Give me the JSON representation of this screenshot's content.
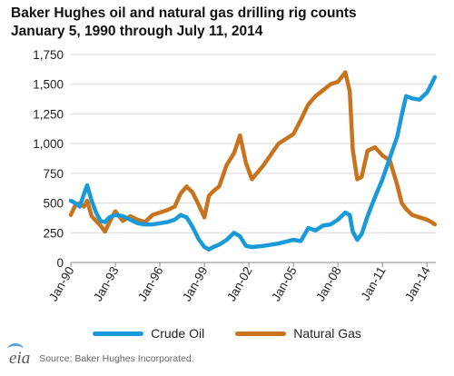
{
  "header": {
    "title_line1": "Baker Hughes oil and natural gas drilling rig counts",
    "title_line2": "January 5, 1990 through July 11, 2014"
  },
  "footer": {
    "logo": "eia",
    "source": "Source: Baker Hughes Incorporated."
  },
  "chart_data": {
    "type": "line",
    "title": "Baker Hughes oil and natural gas drilling rig counts",
    "subtitle": "January 5, 1990 through July 11, 2014",
    "xlabel": "",
    "ylabel": "",
    "ylim": [
      0,
      1750
    ],
    "xlim": [
      1990.0,
      2014.6
    ],
    "yticks": [
      0,
      250,
      500,
      750,
      1000,
      1250,
      1500,
      1750
    ],
    "ytick_labels": [
      "0",
      "250",
      "500",
      "750",
      "1,000",
      "1,250",
      "1,500",
      "1,750"
    ],
    "xticks": [
      1990,
      1993,
      1996,
      1999,
      2002,
      2005,
      2008,
      2011,
      2014
    ],
    "xtick_labels": [
      "Jan-90",
      "Jan-93",
      "Jan-96",
      "Jan-99",
      "Jan-02",
      "Jan-05",
      "Jan-08",
      "Jan-11",
      "Jan-14"
    ],
    "grid": "horizontal",
    "legend_position": "bottom",
    "series": [
      {
        "name": "Crude Oil",
        "color": "#1a9ad8",
        "x": [
          1990.0,
          1990.3,
          1990.6,
          1990.9,
          1991.1,
          1991.4,
          1991.7,
          1992.0,
          1992.3,
          1992.6,
          1993.0,
          1993.5,
          1994.0,
          1994.5,
          1995.0,
          1995.5,
          1996.0,
          1996.5,
          1997.0,
          1997.4,
          1997.8,
          1998.2,
          1998.6,
          1999.0,
          1999.3,
          1999.6,
          2000.0,
          2000.5,
          2001.0,
          2001.4,
          2001.8,
          2002.2,
          2003.0,
          2004.0,
          2005.0,
          2005.5,
          2006.0,
          2006.5,
          2007.0,
          2007.5,
          2008.0,
          2008.5,
          2008.8,
          2009.0,
          2009.3,
          2009.6,
          2010.0,
          2010.5,
          2011.0,
          2011.5,
          2012.0,
          2012.3,
          2012.6,
          2013.0,
          2013.5,
          2014.0,
          2014.3,
          2014.53
        ],
        "values": [
          520,
          500,
          470,
          580,
          650,
          520,
          420,
          350,
          340,
          380,
          400,
          390,
          360,
          330,
          320,
          320,
          330,
          340,
          360,
          400,
          380,
          300,
          200,
          130,
          110,
          130,
          150,
          190,
          250,
          220,
          140,
          130,
          140,
          160,
          190,
          180,
          290,
          270,
          310,
          320,
          360,
          420,
          400,
          260,
          190,
          240,
          390,
          550,
          700,
          880,
          1060,
          1240,
          1400,
          1380,
          1370,
          1430,
          1500,
          1560
        ]
      },
      {
        "name": "Natural Gas",
        "color": "#c8741e",
        "x": [
          1990.0,
          1990.3,
          1990.6,
          1990.9,
          1991.1,
          1991.4,
          1991.7,
          1992.0,
          1992.3,
          1992.6,
          1993.0,
          1993.5,
          1994.0,
          1994.5,
          1995.0,
          1995.5,
          1996.0,
          1996.5,
          1997.0,
          1997.4,
          1997.8,
          1998.2,
          1998.6,
          1999.0,
          1999.3,
          1999.6,
          2000.0,
          2000.5,
          2001.0,
          2001.4,
          2001.8,
          2002.2,
          2003.0,
          2004.0,
          2005.0,
          2005.5,
          2006.0,
          2006.5,
          2007.0,
          2007.5,
          2008.0,
          2008.5,
          2008.8,
          2009.0,
          2009.3,
          2009.6,
          2010.0,
          2010.5,
          2011.0,
          2011.5,
          2012.0,
          2012.3,
          2012.6,
          2013.0,
          2013.5,
          2014.0,
          2014.3,
          2014.53
        ],
        "values": [
          400,
          480,
          500,
          470,
          520,
          390,
          350,
          310,
          260,
          340,
          430,
          350,
          390,
          360,
          340,
          400,
          420,
          440,
          470,
          580,
          640,
          590,
          490,
          380,
          560,
          600,
          640,
          820,
          920,
          1070,
          840,
          700,
          820,
          1000,
          1080,
          1200,
          1330,
          1400,
          1450,
          1500,
          1520,
          1600,
          1440,
          950,
          700,
          720,
          940,
          970,
          900,
          860,
          650,
          500,
          450,
          400,
          380,
          360,
          340,
          320
        ]
      }
    ]
  }
}
